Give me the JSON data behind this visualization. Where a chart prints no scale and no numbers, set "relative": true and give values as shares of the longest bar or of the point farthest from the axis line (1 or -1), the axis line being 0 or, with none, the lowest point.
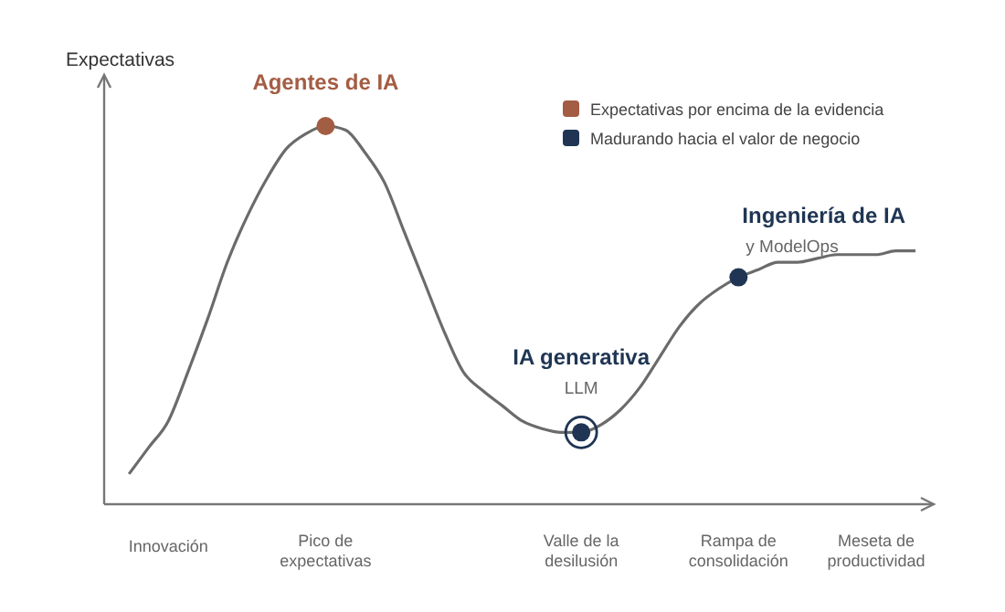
{
  "chart_data": {
    "type": "line",
    "relative": true,
    "ylabel": "Expectativas",
    "categories": [
      null,
      null,
      "Innovación",
      null,
      null,
      null,
      null,
      null,
      null,
      null,
      "Pico de expectativas",
      null,
      null,
      null,
      null,
      null,
      null,
      null,
      null,
      null,
      null,
      null,
      null,
      "Valle de la desilusión",
      null,
      null,
      null,
      null,
      null,
      null,
      null,
      "Rampa de consolidación",
      null,
      null,
      null,
      null,
      null,
      null,
      "Meseta de productividad",
      null,
      null
    ],
    "series": [
      {
        "color": "#6b6b6b",
        "marker": "none",
        "values": [
          0.08,
          0.15,
          0.22,
          0.35,
          0.49,
          0.64,
          0.76,
          0.86,
          0.94,
          0.98,
          1,
          0.99,
          0.93,
          0.85,
          0.72,
          0.59,
          0.46,
          0.35,
          0.3,
          0.26,
          0.22,
          0.2,
          0.19,
          0.19,
          0.21,
          0.25,
          0.31,
          0.39,
          0.47,
          0.53,
          0.57,
          0.6,
          0.62,
          0.64,
          0.64,
          0.65,
          0.66,
          0.66,
          0.66,
          0.67,
          0.67
        ]
      },
      {
        "type": "scatter",
        "name": "Expectativas por encima de la evidencia",
        "marker": "circle",
        "color": "#a35d43",
        "values": [
          null,
          null,
          null,
          null,
          null,
          null,
          null,
          null,
          null,
          null,
          1,
          null,
          null,
          null,
          null,
          null,
          null,
          null,
          null,
          null,
          null,
          null,
          null,
          null,
          null,
          null,
          null,
          null,
          null,
          null,
          null,
          null,
          null,
          null,
          null,
          null,
          null,
          null,
          null,
          null,
          null
        ]
      },
      {
        "type": "scatter",
        "name": "Madurando hacia el valor de negocio",
        "marker": "circle",
        "color": "#1f3553",
        "values": [
          null,
          null,
          null,
          null,
          null,
          null,
          null,
          null,
          null,
          null,
          null,
          null,
          null,
          null,
          null,
          null,
          null,
          null,
          null,
          null,
          null,
          null,
          null,
          0.19,
          null,
          null,
          null,
          null,
          null,
          null,
          null,
          0.6,
          null,
          null,
          null,
          null,
          null,
          null,
          null,
          null,
          null
        ]
      }
    ],
    "annotations": [
      {
        "text": "Agentes de IA",
        "x": "Pico de expectativas",
        "y": 1
      },
      {
        "text": "IA generativa",
        "x": "Valle de la desilusión",
        "y": 0.19
      },
      {
        "text": "LLM",
        "x": "Valle de la desilusión",
        "y": 0.19
      },
      {
        "text": "Ingeniería de IA",
        "x": "Rampa de consolidación",
        "y": 0.6
      },
      {
        "text": "y ModelOps",
        "x": "Rampa de consolidación",
        "y": 0.6
      }
    ],
    "legend": "top right"
  }
}
